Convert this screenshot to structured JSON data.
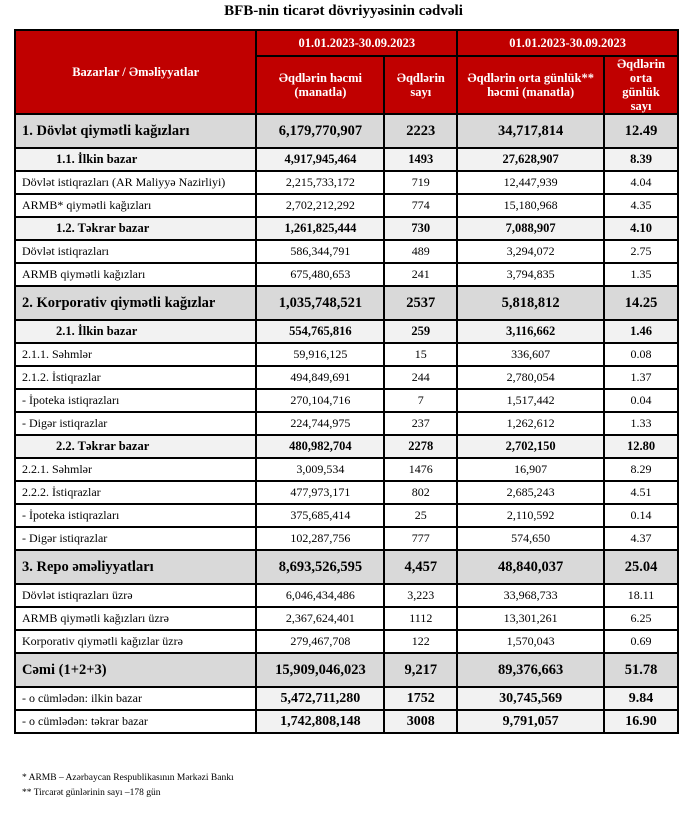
{
  "title": "BFB-nin ticarət dövriyyəsinin cədvəli",
  "header": {
    "col0": "Bazarlar / Əməliyyatlar",
    "period1": "01.01.2023-30.09.2023",
    "period2": "01.01.2023-30.09.2023",
    "h1": "Əqdlərin həcmi (manatla)",
    "h2": "Əqdlərin sayı",
    "h3": "Əqdlərin orta günlük** həcmi (manatla)",
    "h4": "Əqdlərin orta günlük sayı"
  },
  "header_color": "#c00000",
  "rows": [
    {
      "type": "cat",
      "label": "1. Dövlət qiymətli kağızları",
      "values": [
        "6,179,770,907",
        "2223",
        "34,717,814",
        "12.49"
      ]
    },
    {
      "type": "sub",
      "label": "1.1. İlkin bazar",
      "values": [
        "4,917,945,464",
        "1493",
        "27,628,907",
        "8.39"
      ]
    },
    {
      "type": "norm",
      "label": "Dövlət istiqrazları (AR Maliyyə Nazirliyi)",
      "values": [
        "2,215,733,172",
        "719",
        "12,447,939",
        "4.04"
      ]
    },
    {
      "type": "norm",
      "label": "ARMB* qiymətli kağızları",
      "values": [
        "2,702,212,292",
        "774",
        "15,180,968",
        "4.35"
      ]
    },
    {
      "type": "sub",
      "label": "1.2. Təkrar bazar",
      "values": [
        "1,261,825,444",
        "730",
        "7,088,907",
        "4.10"
      ]
    },
    {
      "type": "norm",
      "label": "Dövlət istiqrazları",
      "values": [
        "586,344,791",
        "489",
        "3,294,072",
        "2.75"
      ]
    },
    {
      "type": "norm",
      "label": "ARMB qiymətli kağızları",
      "values": [
        "675,480,653",
        "241",
        "3,794,835",
        "1.35"
      ]
    },
    {
      "type": "cat",
      "label": "2. Korporativ qiymətli kağızlar",
      "values": [
        "1,035,748,521",
        "2537",
        "5,818,812",
        "14.25"
      ]
    },
    {
      "type": "sub",
      "label": "2.1. İlkin bazar",
      "values": [
        "554,765,816",
        "259",
        "3,116,662",
        "1.46"
      ]
    },
    {
      "type": "norm",
      "label": "2.1.1. Səhmlər",
      "values": [
        "59,916,125",
        "15",
        "336,607",
        "0.08"
      ]
    },
    {
      "type": "norm",
      "label": "2.1.2. İstiqrazlar",
      "values": [
        "494,849,691",
        "244",
        "2,780,054",
        "1.37"
      ]
    },
    {
      "type": "norm",
      "label": " - İpoteka istiqrazları",
      "values": [
        "270,104,716",
        "7",
        "1,517,442",
        "0.04"
      ]
    },
    {
      "type": "norm",
      "label": " - Digər istiqrazlar",
      "values": [
        "224,744,975",
        "237",
        "1,262,612",
        "1.33"
      ]
    },
    {
      "type": "sub",
      "label": "2.2. Təkrar bazar",
      "values": [
        "480,982,704",
        "2278",
        "2,702,150",
        "12.80"
      ]
    },
    {
      "type": "norm",
      "label": "2.2.1. Səhmlər",
      "values": [
        "3,009,534",
        "1476",
        "16,907",
        "8.29"
      ]
    },
    {
      "type": "norm",
      "label": "2.2.2. İstiqrazlar",
      "values": [
        "477,973,171",
        "802",
        "2,685,243",
        "4.51"
      ]
    },
    {
      "type": "norm",
      "label": " - İpoteka istiqrazları",
      "values": [
        "375,685,414",
        "25",
        "2,110,592",
        "0.14"
      ]
    },
    {
      "type": "norm",
      "label": " - Digər istiqrazlar",
      "values": [
        "102,287,756",
        "777",
        "574,650",
        "4.37"
      ]
    },
    {
      "type": "cat",
      "label": "3. Repo əməliyyatları",
      "values": [
        "8,693,526,595",
        "4,457",
        "48,840,037",
        "25.04"
      ]
    },
    {
      "type": "norm",
      "label": "Dövlət istiqrazları üzrə",
      "values": [
        "6,046,434,486",
        "3,223",
        "33,968,733",
        "18.11"
      ]
    },
    {
      "type": "norm",
      "label": "ARMB qiymətli kağızları üzrə",
      "values": [
        "2,367,624,401",
        "1112",
        "13,301,261",
        "6.25"
      ]
    },
    {
      "type": "norm",
      "label": "Korporativ qiymətli kağızlar üzrə",
      "values": [
        "279,467,708",
        "122",
        "1,570,043",
        "0.69"
      ]
    },
    {
      "type": "cat",
      "label": "Cəmi (1+2+3)",
      "values": [
        "15,909,046,023",
        "9,217",
        "89,376,663",
        "51.78"
      ]
    },
    {
      "type": "incl",
      "label": " - o cümlədən: ilkin bazar",
      "values": [
        "5,472,711,280",
        "1752",
        "30,745,569",
        "9.84"
      ]
    },
    {
      "type": "incl",
      "label": " - o cümlədən: təkrar bazar",
      "values": [
        "1,742,808,148",
        "3008",
        "9,791,057",
        "16.90"
      ]
    }
  ],
  "footnotes": [
    "* ARMB – Azərbaycan Respublikasının Mərkəzi Bankı",
    "** Tircarət günlərinin sayı –178 gün"
  ]
}
